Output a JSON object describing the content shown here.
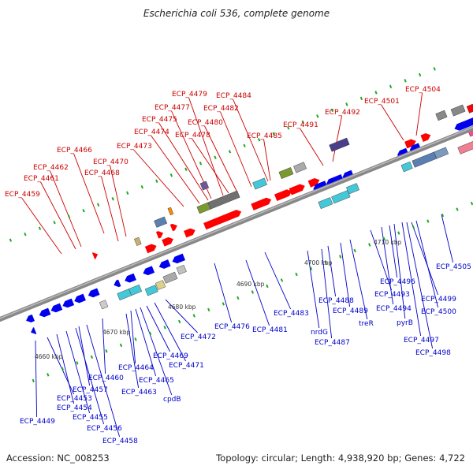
{
  "title": "Escherichia coli 536, complete genome",
  "footer": {
    "accession": "Accession: NC_008253",
    "summary": "Topology: circular; Length: 4,938,920 bp; Genes: 4,722"
  },
  "colors": {
    "label_top": "#cc0000",
    "label_bottom": "#0000cc",
    "backbone": "#8a8a8a",
    "gene_forward": "#ff0000",
    "gene_reverse": "#0000ee",
    "tick": "#22aa22"
  },
  "scale_labels": [
    "4660 kbp",
    "4670 kbp",
    "4680 kbp",
    "4690 kbp",
    "4700 kbp",
    "4710 kbp"
  ],
  "labels_top": [
    "ECP_4459",
    "ECP_4461",
    "ECP_4462",
    "ECP_4466",
    "ECP_4468",
    "ECP_4470",
    "ECP_4473",
    "ECP_4474",
    "ECP_4475",
    "ECP_4477",
    "ECP_4479",
    "ECP_4478",
    "ECP_4480",
    "ECP_4482",
    "ECP_4484",
    "ECP_4485",
    "ECP_4491",
    "ECP_4492",
    "ECP_4501",
    "ECP_4504"
  ],
  "labels_bottom": [
    "ECP_4449",
    "ECP_4453",
    "ECP_4454",
    "ECP_4455",
    "ECP_4456",
    "ECP_4457",
    "ECP_4458",
    "ECP_4460",
    "ECP_4463",
    "ECP_4464",
    "ECP_4465",
    "cpdB",
    "ECP_4469",
    "ECP_4471",
    "ECP_4472",
    "ECP_4476",
    "ECP_4481",
    "ECP_4483",
    "nrdG",
    "ECP_4487",
    "ECP_4488",
    "ECP_4489",
    "treR",
    "ECP_4493",
    "ECP_4494",
    "ECP_4496",
    "pyrB",
    "ECP_4497",
    "ECP_4498",
    "ECP_4499",
    "ECP_4500",
    "ECP_4505"
  ]
}
